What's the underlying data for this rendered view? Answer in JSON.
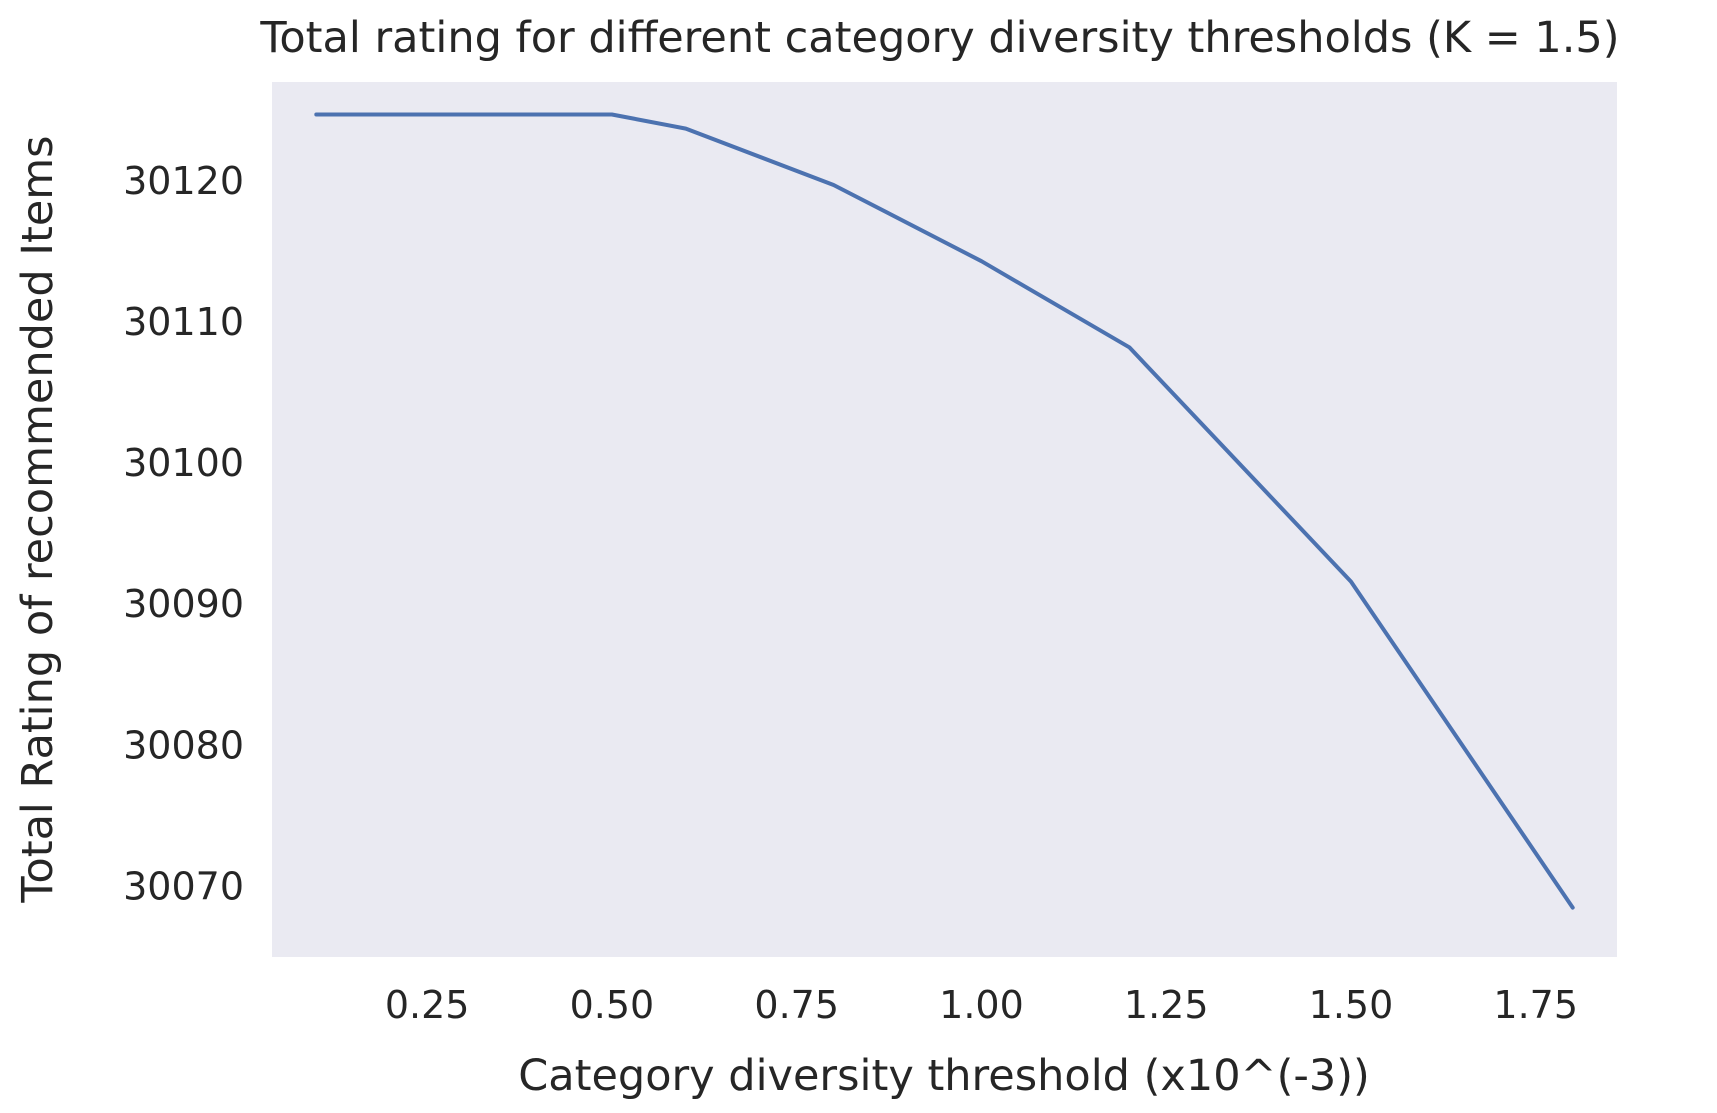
{
  "chart_data": {
    "type": "line",
    "title": "Total rating for different category diversity thresholds (K = 1.5)",
    "xlabel": "Category diversity threshold (x10^(-3))",
    "ylabel": "Total Rating of recommended Items",
    "xlim": [
      0.04,
      1.86
    ],
    "ylim": [
      30065.0,
      30127.0
    ],
    "x_ticks": [
      "0.25",
      "0.50",
      "0.75",
      "1.00",
      "1.25",
      "1.50",
      "1.75"
    ],
    "y_ticks": [
      "30070",
      "30080",
      "30090",
      "30100",
      "30110",
      "30120"
    ],
    "grid": false,
    "background_color": "#eaeaf2",
    "series": [
      {
        "color": "#4c72b0",
        "x": [
          0.1,
          0.2,
          0.3,
          0.4,
          0.5,
          0.6,
          0.8,
          1.0,
          1.2,
          1.5,
          1.8
        ],
        "y": [
          30124.7,
          30124.7,
          30124.7,
          30124.7,
          30124.7,
          30123.7,
          30119.7,
          30114.3,
          30108.2,
          30091.6,
          30068.5
        ]
      }
    ]
  }
}
